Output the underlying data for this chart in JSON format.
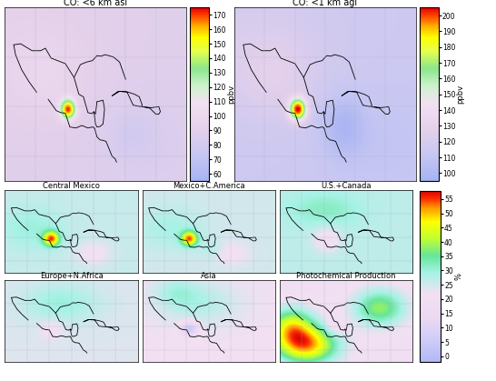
{
  "titles_row1": [
    "CO: <6 km asl",
    "CO: <1 km agl"
  ],
  "titles_row2": [
    "Central Mexico",
    "Mexico+C.America",
    "U.S.+Canada"
  ],
  "titles_row3": [
    "Europe+N.Africa",
    "Asia",
    "Photochemical Production"
  ],
  "cbar1_label": "ppbv",
  "cbar1_ticks": [
    60,
    70,
    80,
    90,
    100,
    110,
    120,
    130,
    140,
    150,
    160,
    170
  ],
  "cbar1_vmin": 55,
  "cbar1_vmax": 175,
  "cbar2_label": "ppbv",
  "cbar2_ticks": [
    100,
    110,
    120,
    130,
    140,
    150,
    160,
    170,
    180,
    190,
    200
  ],
  "cbar2_vmin": 95,
  "cbar2_vmax": 205,
  "cbar3_label": "%",
  "cbar3_ticks": [
    0,
    5,
    10,
    15,
    20,
    25,
    30,
    35,
    40,
    45,
    50,
    55
  ],
  "cbar3_vmin": -2,
  "cbar3_vmax": 58,
  "bg_color": "#ffffff",
  "lon_min": -120,
  "lon_max": -60,
  "lat_min": 5,
  "lat_max": 40
}
